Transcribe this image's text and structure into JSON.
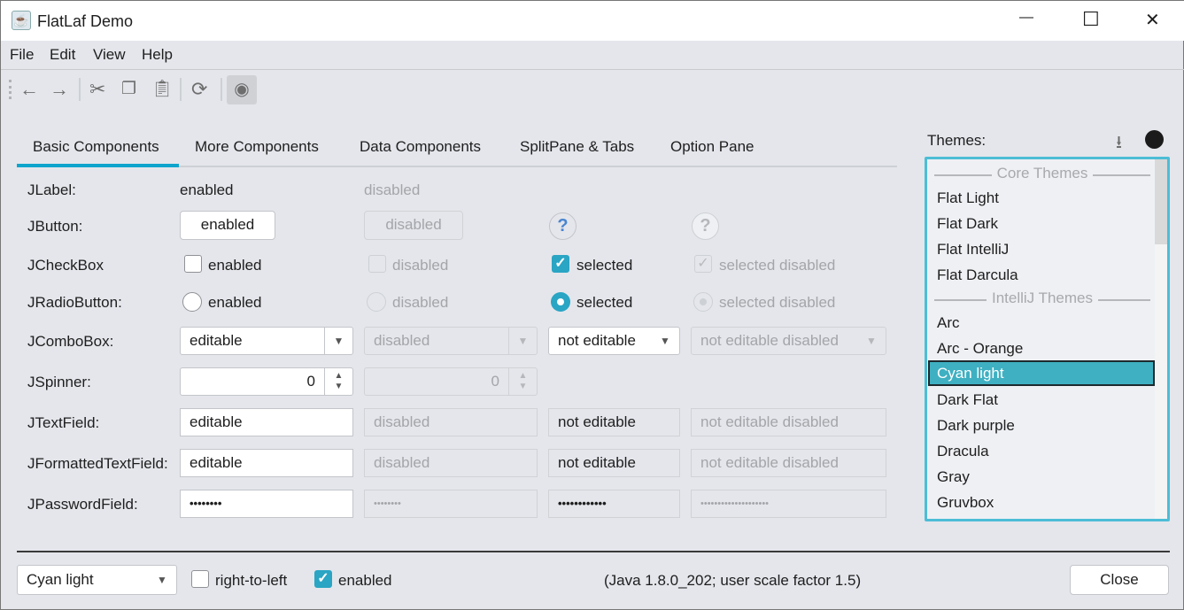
{
  "window": {
    "title": "FlatLaf Demo",
    "minimize": "—",
    "maximize": "☐",
    "close": "✕"
  },
  "menu": [
    "File",
    "Edit",
    "View",
    "Help"
  ],
  "toolbar": {
    "icons": [
      "back-arrow",
      "forward-arrow",
      "cut",
      "copy",
      "paste",
      "refresh",
      "eye-toggle"
    ]
  },
  "tabs": [
    "Basic Components",
    "More Components",
    "Data Components",
    "SplitPane & Tabs",
    "Option Pane"
  ],
  "selected_tab": "Basic Components",
  "rows": {
    "jlabel": {
      "label": "JLabel:",
      "enabled": "enabled",
      "disabled": "disabled"
    },
    "jbutton": {
      "label": "JButton:",
      "enabled": "enabled",
      "disabled": "disabled",
      "help": "?"
    },
    "jcheckbox": {
      "label": "JCheckBox",
      "enabled": "enabled",
      "disabled": "disabled",
      "selected": "selected",
      "selected_disabled": "selected disabled"
    },
    "jradio": {
      "label": "JRadioButton:",
      "enabled": "enabled",
      "disabled": "disabled",
      "selected": "selected",
      "selected_disabled": "selected disabled"
    },
    "jcombo": {
      "label": "JComboBox:",
      "editable": "editable",
      "disabled": "disabled",
      "not_editable": "not editable",
      "not_editable_disabled": "not editable disabled"
    },
    "jspinner": {
      "label": "JSpinner:",
      "value": "0",
      "disabled_value": "0"
    },
    "jtextfield": {
      "label": "JTextField:",
      "editable": "editable",
      "disabled": "disabled",
      "not_editable": "not editable",
      "not_editable_disabled": "not editable disabled"
    },
    "jformatted": {
      "label": "JFormattedTextField:",
      "editable": "editable",
      "disabled": "disabled",
      "not_editable": "not editable",
      "not_editable_disabled": "not editable disabled"
    },
    "jpassword": {
      "label": "JPasswordField:",
      "p1": "••••••••",
      "p2": "••••••••",
      "p3": "••••••••••••",
      "p4": "••••••••••••••••••••"
    }
  },
  "themes": {
    "label": "Themes:",
    "groups": [
      "Core Themes",
      "IntelliJ Themes"
    ],
    "core": [
      "Flat Light",
      "Flat Dark",
      "Flat IntelliJ",
      "Flat Darcula"
    ],
    "intellij": [
      "Arc",
      "Arc - Orange",
      "Cyan light",
      "Dark Flat",
      "Dark purple",
      "Dracula",
      "Gray",
      "Gruvbox"
    ],
    "selected": "Cyan light"
  },
  "bottom": {
    "theme_combo": "Cyan light",
    "rtl": "right-to-left",
    "rtl_checked": false,
    "enabled": "enabled",
    "enabled_checked": true,
    "info": "(Java 1.8.0_202;  user scale factor 1.5)",
    "close": "Close"
  },
  "colors": {
    "accent": "#2aa5c4",
    "tab_underline": "#0ea5cc",
    "selection": "#3eb0c2",
    "background": "#e4e6eb"
  }
}
